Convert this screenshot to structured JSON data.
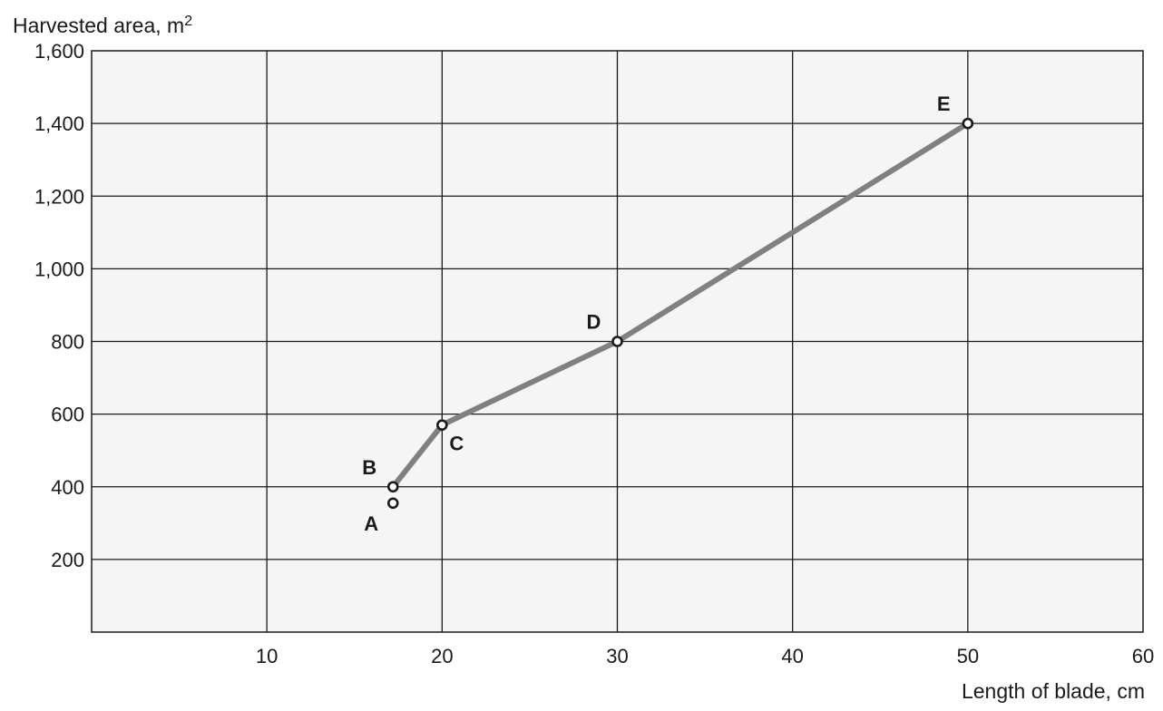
{
  "chart_data": {
    "type": "line",
    "title": "",
    "xlabel": "Length of blade, cm",
    "ylabel_prefix": "Harvested area, m",
    "ylabel_sup": "2",
    "xlim": [
      0,
      60
    ],
    "ylim": [
      0,
      1600
    ],
    "x_ticks": [
      {
        "value": 10,
        "label": "10"
      },
      {
        "value": 20,
        "label": "20"
      },
      {
        "value": 30,
        "label": "30"
      },
      {
        "value": 40,
        "label": "40"
      },
      {
        "value": 50,
        "label": "50"
      },
      {
        "value": 60,
        "label": "60"
      }
    ],
    "y_ticks": [
      {
        "value": 200,
        "label": "200"
      },
      {
        "value": 400,
        "label": "400"
      },
      {
        "value": 600,
        "label": "600"
      },
      {
        "value": 800,
        "label": "800"
      },
      {
        "value": 1000,
        "label": "1,000"
      },
      {
        "value": 1200,
        "label": "1,200"
      },
      {
        "value": 1400,
        "label": "1,400"
      },
      {
        "value": 1600,
        "label": "1,600"
      }
    ],
    "grid": true,
    "points": [
      {
        "label": "A",
        "x": 17.2,
        "y": 355,
        "connected": false,
        "label_side": "below-left"
      },
      {
        "label": "B",
        "x": 17.2,
        "y": 400,
        "connected": true,
        "label_side": "upper-left"
      },
      {
        "label": "C",
        "x": 20,
        "y": 570,
        "connected": true,
        "label_side": "lower-right"
      },
      {
        "label": "D",
        "x": 30,
        "y": 800,
        "connected": true,
        "label_side": "upper-left"
      },
      {
        "label": "E",
        "x": 50,
        "y": 1400,
        "connected": true,
        "label_side": "upper-left"
      }
    ],
    "line_color": "#808080",
    "background_color": "#f5f5f5"
  }
}
